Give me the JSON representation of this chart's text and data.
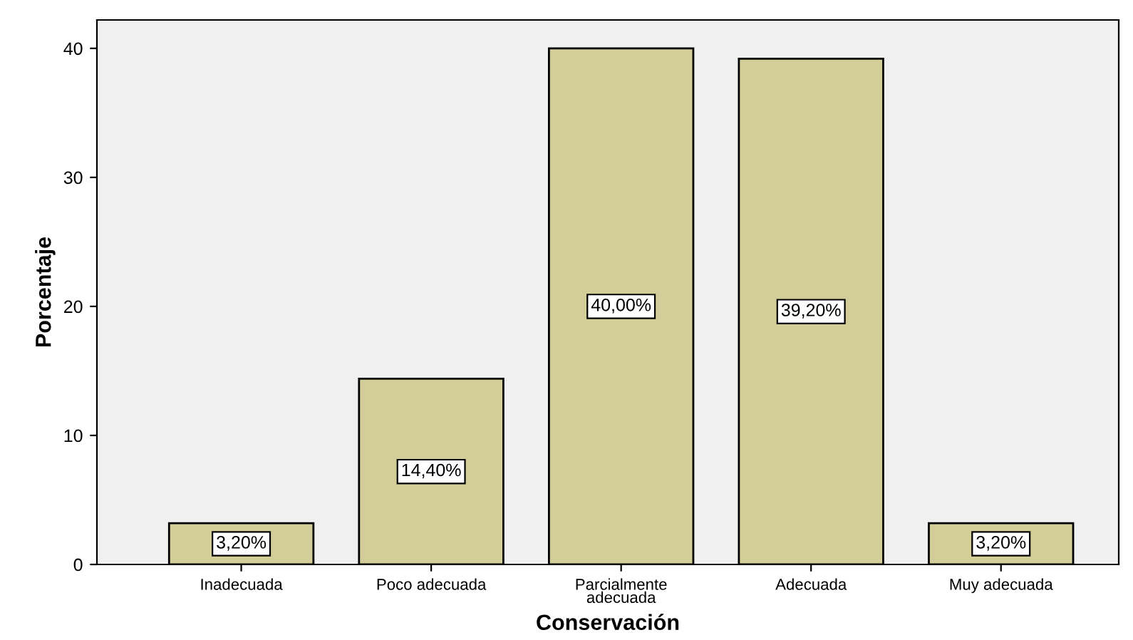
{
  "chart_data": {
    "type": "bar",
    "xlabel": "Conservación",
    "ylabel": "Porcentaje",
    "categories": [
      "Inadecuada",
      "Poco adecuada",
      "Parcialmente\nadecuada",
      "Adecuada",
      "Muy adecuada"
    ],
    "values": [
      3.2,
      14.4,
      40.0,
      39.2,
      3.2
    ],
    "value_labels": [
      "3,20%",
      "14,40%",
      "40,00%",
      "39,20%",
      "3,20%"
    ],
    "color": "#d3ce99",
    "ylim": [
      0,
      42.2
    ],
    "yticks": [
      0,
      10,
      20,
      30,
      40
    ],
    "grid": false,
    "legend": false
  }
}
